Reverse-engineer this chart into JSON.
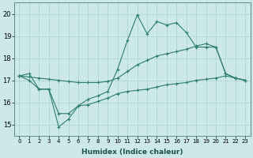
{
  "xlabel": "Humidex (Indice chaleur)",
  "x_values": [
    0,
    1,
    2,
    3,
    4,
    5,
    6,
    7,
    8,
    9,
    10,
    11,
    12,
    13,
    14,
    15,
    16,
    17,
    18,
    19,
    20,
    21,
    22,
    23
  ],
  "line1_y": [
    17.2,
    17.3,
    16.6,
    16.6,
    15.5,
    15.5,
    15.85,
    16.15,
    16.3,
    16.5,
    17.5,
    18.8,
    19.95,
    19.1,
    19.65,
    19.5,
    19.6,
    19.15,
    18.5,
    18.5,
    18.5,
    17.3,
    17.1,
    17.0
  ],
  "line2_y": [
    17.2,
    17.15,
    17.1,
    17.05,
    17.0,
    16.95,
    16.9,
    16.9,
    16.9,
    16.95,
    17.1,
    17.4,
    17.7,
    17.9,
    18.1,
    18.2,
    18.3,
    18.4,
    18.55,
    18.65,
    18.5,
    17.3,
    17.1,
    17.0
  ],
  "line3_y": [
    17.2,
    17.0,
    16.6,
    16.6,
    14.9,
    15.25,
    15.85,
    15.9,
    16.05,
    16.2,
    16.4,
    16.5,
    16.55,
    16.6,
    16.7,
    16.8,
    16.85,
    16.9,
    17.0,
    17.05,
    17.1,
    17.2,
    17.1,
    17.0
  ],
  "line_color": "#2e7d6e",
  "bg_color": "#cce8e8",
  "grid_color": "#b0d4d4",
  "ylim": [
    14.5,
    20.5
  ],
  "xlim": [
    -0.5,
    23.5
  ],
  "yticks": [
    15,
    16,
    17,
    18,
    19,
    20
  ]
}
